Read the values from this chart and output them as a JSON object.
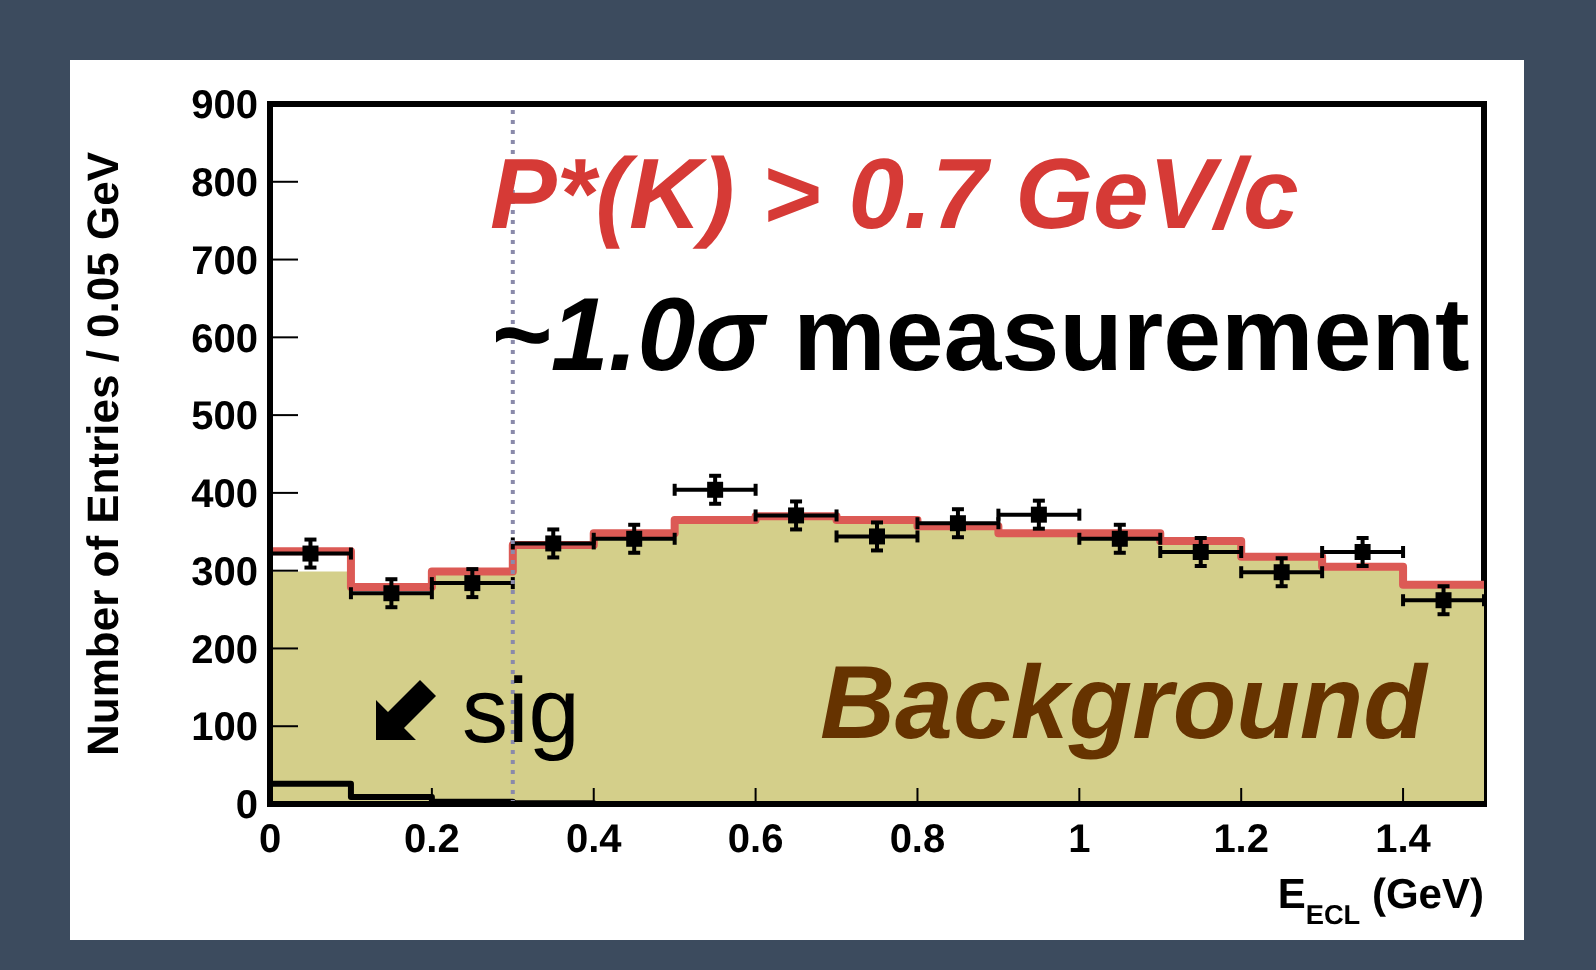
{
  "chart_data": {
    "type": "histogram",
    "xlabel": "E$_{ECL}$ (GeV)",
    "ylabel": "Number of Entries / 0.05 GeV",
    "bins": [
      0,
      0.1,
      0.2,
      0.3,
      0.4,
      0.5,
      0.6,
      0.7,
      0.8,
      0.9,
      1.0,
      1.1,
      1.2,
      1.3,
      1.4,
      1.5
    ],
    "series": [
      {
        "name": "Background",
        "color": "#d4cf8a",
        "values": [
          299,
          270,
          296,
          332,
          348,
          365,
          370,
          365,
          357,
          348,
          348,
          338,
          318,
          305,
          282
        ]
      },
      {
        "name": "sig",
        "type": "step",
        "color": "#000000",
        "x": [
          0,
          0.1,
          0.2,
          0.3,
          0.4,
          0.5,
          0.6,
          0.7,
          0.8,
          0.9,
          1.0,
          1.1,
          1.2,
          1.3,
          1.4,
          1.5
        ],
        "values": [
          26,
          9,
          3,
          1,
          0,
          0,
          0,
          0,
          0,
          0,
          0,
          0,
          0,
          0,
          0,
          0
        ]
      },
      {
        "type": "step",
        "color": "#dc5a55",
        "x": [
          0,
          0.1,
          0.2,
          0.3,
          0.4,
          0.5,
          0.6,
          0.7,
          0.8,
          0.9,
          1.0,
          1.1,
          1.2,
          1.3,
          1.4,
          1.5
        ],
        "values": [
          325,
          279,
          299,
          333,
          348,
          365,
          370,
          365,
          357,
          348,
          348,
          338,
          318,
          305,
          282,
          282
        ]
      },
      {
        "type": "scatter",
        "color": "#000000",
        "marker": "square",
        "x": [
          0.05,
          0.15,
          0.25,
          0.35,
          0.45,
          0.55,
          0.65,
          0.75,
          0.85,
          0.95,
          1.05,
          1.15,
          1.25,
          1.35,
          1.45
        ],
        "values": [
          322,
          271,
          284,
          335,
          341,
          404,
          371,
          344,
          361,
          372,
          341,
          324,
          298,
          324,
          262
        ],
        "errors": [
          18,
          18,
          18,
          18,
          18,
          18,
          18,
          18,
          18,
          18,
          18,
          18,
          18,
          18,
          18
        ],
        "xerrors": [
          0.05,
          0.05,
          0.05,
          0.05,
          0.05,
          0.05,
          0.05,
          0.05,
          0.05,
          0.05,
          0.05,
          0.05,
          0.05,
          0.05,
          0.05
        ]
      }
    ],
    "xlim": [
      0,
      1.5
    ],
    "ylim": [
      0,
      900
    ],
    "xticks": [
      0,
      0.2,
      0.4,
      0.6,
      0.8,
      1,
      1.2,
      1.4
    ],
    "yticks": [
      0,
      100,
      200,
      300,
      400,
      500,
      600,
      700,
      800,
      900
    ],
    "ref_lines": [
      {
        "axis": "x",
        "value": 0.3,
        "color": "#8a8aaa",
        "line_style": "dotted"
      }
    ],
    "annotations": [
      "P*(K) > 0.7 GeV/c",
      "~1.0σ measurement"
    ],
    "grid": false
  }
}
